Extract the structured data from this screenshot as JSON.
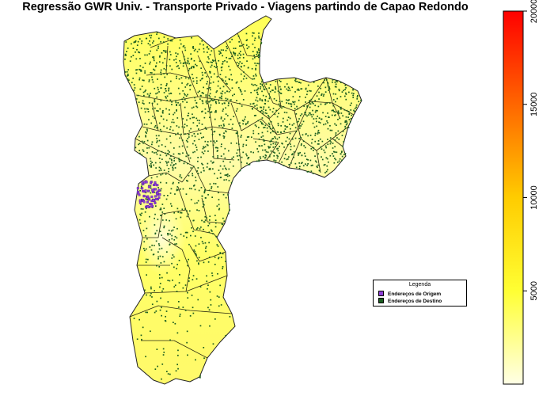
{
  "title": "Regressão GWR Univ. - Transporte Privado - Viagens partindo de Capao Redondo",
  "colorbar": {
    "ticks": [
      "5000",
      "10000",
      "15000",
      "20000"
    ],
    "tick_values": [
      5000,
      10000,
      15000,
      20000
    ],
    "range": [
      0,
      20000
    ],
    "colors": [
      "#ffffe6",
      "#ffff33",
      "#ffcc00",
      "#ff6600",
      "#ff0000"
    ]
  },
  "legend": {
    "title": "Legenda",
    "items": [
      {
        "label": "Endereços de Origem",
        "color": "#8e3fd6"
      },
      {
        "label": "Endereços de Destino",
        "color": "#1b5e20"
      }
    ]
  }
}
